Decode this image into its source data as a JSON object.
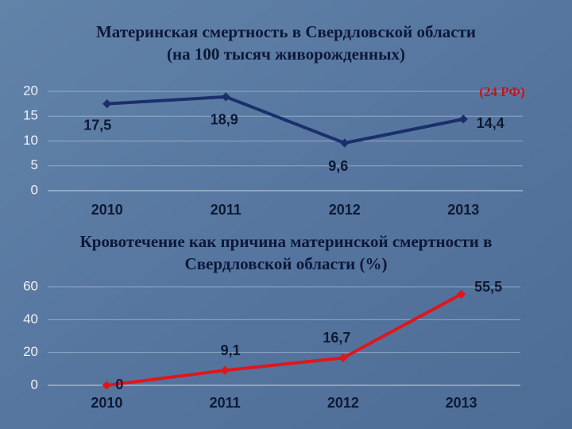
{
  "chart_data": [
    {
      "type": "line",
      "title": "Материнская смертность в Свердловской области",
      "subtitle": "(на 100 тысяч живорожденных)",
      "annotation": "(24 РФ)",
      "categories": [
        "2010",
        "2011",
        "2012",
        "2013"
      ],
      "series": [
        {
          "color": "#1a2f6b",
          "values": [
            17.5,
            18.9,
            9.6,
            14.4
          ],
          "value_labels": [
            "17,5",
            "18,9",
            "9,6",
            "14,4"
          ]
        }
      ],
      "ylim": [
        0,
        20
      ],
      "yticks": [
        0,
        5,
        10,
        15,
        20
      ],
      "grid": true
    },
    {
      "type": "line",
      "title": "Кровотечение как причина материнской смертности в",
      "subtitle": "Свердловской области (%)",
      "categories": [
        "2010",
        "2011",
        "2012",
        "2013"
      ],
      "series": [
        {
          "color": "#e0161b",
          "values": [
            0,
            9.1,
            16.7,
            55.5
          ],
          "value_labels": [
            "0",
            "9,1",
            "16,7",
            "55,5"
          ]
        }
      ],
      "ylim": [
        0,
        60
      ],
      "yticks": [
        0,
        20,
        40,
        60
      ],
      "grid": true
    }
  ]
}
